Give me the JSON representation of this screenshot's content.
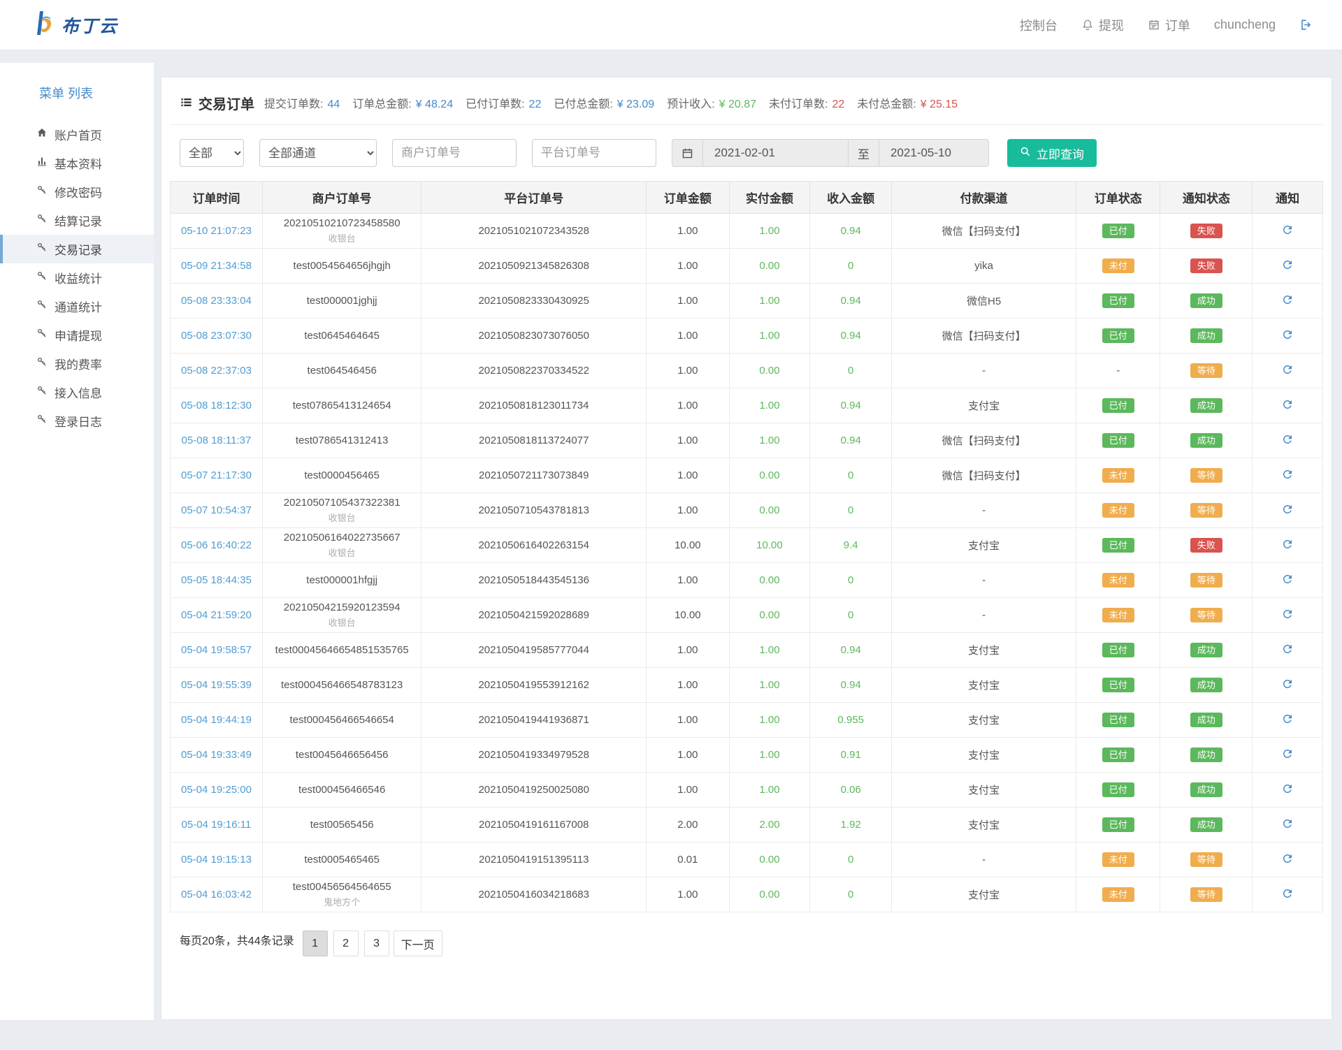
{
  "brand": {
    "name": "布丁云"
  },
  "topnav": {
    "console": "控制台",
    "withdraw": "提现",
    "orders": "订单",
    "username": "chuncheng"
  },
  "sidebar": {
    "title": "菜单 列表",
    "items": [
      {
        "label": "账户首页",
        "icon": "home-icon",
        "active": false
      },
      {
        "label": "基本资料",
        "icon": "chart-icon",
        "active": false
      },
      {
        "label": "修改密码",
        "icon": "key-icon",
        "active": false
      },
      {
        "label": "结算记录",
        "icon": "key-icon",
        "active": false
      },
      {
        "label": "交易记录",
        "icon": "key-icon",
        "active": true
      },
      {
        "label": "收益统计",
        "icon": "key-icon",
        "active": false
      },
      {
        "label": "通道统计",
        "icon": "key-icon",
        "active": false
      },
      {
        "label": "申请提现",
        "icon": "key-icon",
        "active": false
      },
      {
        "label": "我的费率",
        "icon": "key-icon",
        "active": false
      },
      {
        "label": "接入信息",
        "icon": "key-icon",
        "active": false
      },
      {
        "label": "登录日志",
        "icon": "key-icon",
        "active": false
      }
    ]
  },
  "page": {
    "title": "交易订单",
    "stats": [
      {
        "label": "提交订单数:",
        "value": "44",
        "color": "blue"
      },
      {
        "label": "订单总金额:",
        "value": "¥ 48.24",
        "color": "blue"
      },
      {
        "label": "已付订单数:",
        "value": "22",
        "color": "blue"
      },
      {
        "label": "已付总金额:",
        "value": "¥ 23.09",
        "color": "blue"
      },
      {
        "label": "预计收入:",
        "value": "¥ 20.87",
        "color": "green"
      },
      {
        "label": "未付订单数:",
        "value": "22",
        "color": "red"
      },
      {
        "label": "未付总金额:",
        "value": "¥ 25.15",
        "color": "red"
      }
    ]
  },
  "filters": {
    "status_selected": "全部",
    "channel_selected": "全部通道",
    "merchant_placeholder": "商户订单号",
    "platform_placeholder": "平台订单号",
    "date_from": "2021-02-01",
    "date_separator": "至",
    "date_to": "2021-05-10",
    "search_label": "立即查询"
  },
  "table": {
    "headers": [
      "订单时间",
      "商户订单号",
      "平台订单号",
      "订单金额",
      "实付金额",
      "收入金额",
      "付款渠道",
      "订单状态",
      "通知状态",
      "通知"
    ],
    "rows": [
      {
        "time": "05-10 21:07:23",
        "merchant": "20210510210723458580",
        "merchant_sub": "收银台",
        "platform": "2021051021072343528",
        "amount": "1.00",
        "paid": "1.00",
        "income": "0.94",
        "channel": "微信【扫码支付】",
        "status": "已付",
        "status_type": "paid",
        "notify": "失败",
        "notify_type": "fail"
      },
      {
        "time": "05-09 21:34:58",
        "merchant": "test0054564656jhgjh",
        "merchant_sub": "",
        "platform": "2021050921345826308",
        "amount": "1.00",
        "paid": "0.00",
        "income": "0",
        "channel": "yika",
        "status": "未付",
        "status_type": "unpaid",
        "notify": "失败",
        "notify_type": "fail"
      },
      {
        "time": "05-08 23:33:04",
        "merchant": "test000001jghjj",
        "merchant_sub": "",
        "platform": "2021050823330430925",
        "amount": "1.00",
        "paid": "1.00",
        "income": "0.94",
        "channel": "微信H5",
        "status": "已付",
        "status_type": "paid",
        "notify": "成功",
        "notify_type": "success"
      },
      {
        "time": "05-08 23:07:30",
        "merchant": "test0645464645",
        "merchant_sub": "",
        "platform": "2021050823073076050",
        "amount": "1.00",
        "paid": "1.00",
        "income": "0.94",
        "channel": "微信【扫码支付】",
        "status": "已付",
        "status_type": "paid",
        "notify": "成功",
        "notify_type": "success"
      },
      {
        "time": "05-08 22:37:03",
        "merchant": "test064546456",
        "merchant_sub": "",
        "platform": "2021050822370334522",
        "amount": "1.00",
        "paid": "0.00",
        "income": "0",
        "channel": "-",
        "status": "-",
        "status_type": "none",
        "notify": "等待",
        "notify_type": "wait"
      },
      {
        "time": "05-08 18:12:30",
        "merchant": "test07865413124654",
        "merchant_sub": "",
        "platform": "2021050818123011734",
        "amount": "1.00",
        "paid": "1.00",
        "income": "0.94",
        "channel": "支付宝",
        "status": "已付",
        "status_type": "paid",
        "notify": "成功",
        "notify_type": "success"
      },
      {
        "time": "05-08 18:11:37",
        "merchant": "test0786541312413",
        "merchant_sub": "",
        "platform": "2021050818113724077",
        "amount": "1.00",
        "paid": "1.00",
        "income": "0.94",
        "channel": "微信【扫码支付】",
        "status": "已付",
        "status_type": "paid",
        "notify": "成功",
        "notify_type": "success"
      },
      {
        "time": "05-07 21:17:30",
        "merchant": "test0000456465",
        "merchant_sub": "",
        "platform": "2021050721173073849",
        "amount": "1.00",
        "paid": "0.00",
        "income": "0",
        "channel": "微信【扫码支付】",
        "status": "未付",
        "status_type": "unpaid",
        "notify": "等待",
        "notify_type": "wait"
      },
      {
        "time": "05-07 10:54:37",
        "merchant": "20210507105437322381",
        "merchant_sub": "收银台",
        "platform": "2021050710543781813",
        "amount": "1.00",
        "paid": "0.00",
        "income": "0",
        "channel": "-",
        "status": "未付",
        "status_type": "unpaid",
        "notify": "等待",
        "notify_type": "wait"
      },
      {
        "time": "05-06 16:40:22",
        "merchant": "20210506164022735667",
        "merchant_sub": "收银台",
        "platform": "2021050616402263154",
        "amount": "10.00",
        "paid": "10.00",
        "income": "9.4",
        "channel": "支付宝",
        "status": "已付",
        "status_type": "paid",
        "notify": "失败",
        "notify_type": "fail"
      },
      {
        "time": "05-05 18:44:35",
        "merchant": "test000001hfgjj",
        "merchant_sub": "",
        "platform": "2021050518443545136",
        "amount": "1.00",
        "paid": "0.00",
        "income": "0",
        "channel": "-",
        "status": "未付",
        "status_type": "unpaid",
        "notify": "等待",
        "notify_type": "wait"
      },
      {
        "time": "05-04 21:59:20",
        "merchant": "20210504215920123594",
        "merchant_sub": "收银台",
        "platform": "2021050421592028689",
        "amount": "10.00",
        "paid": "0.00",
        "income": "0",
        "channel": "-",
        "status": "未付",
        "status_type": "unpaid",
        "notify": "等待",
        "notify_type": "wait"
      },
      {
        "time": "05-04 19:58:57",
        "merchant": "test00045646654851535765",
        "merchant_sub": "",
        "platform": "2021050419585777044",
        "amount": "1.00",
        "paid": "1.00",
        "income": "0.94",
        "channel": "支付宝",
        "status": "已付",
        "status_type": "paid",
        "notify": "成功",
        "notify_type": "success"
      },
      {
        "time": "05-04 19:55:39",
        "merchant": "test000456466548783123",
        "merchant_sub": "",
        "platform": "2021050419553912162",
        "amount": "1.00",
        "paid": "1.00",
        "income": "0.94",
        "channel": "支付宝",
        "status": "已付",
        "status_type": "paid",
        "notify": "成功",
        "notify_type": "success"
      },
      {
        "time": "05-04 19:44:19",
        "merchant": "test000456466546654",
        "merchant_sub": "",
        "platform": "2021050419441936871",
        "amount": "1.00",
        "paid": "1.00",
        "income": "0.955",
        "channel": "支付宝",
        "status": "已付",
        "status_type": "paid",
        "notify": "成功",
        "notify_type": "success"
      },
      {
        "time": "05-04 19:33:49",
        "merchant": "test0045646656456",
        "merchant_sub": "",
        "platform": "2021050419334979528",
        "amount": "1.00",
        "paid": "1.00",
        "income": "0.91",
        "channel": "支付宝",
        "status": "已付",
        "status_type": "paid",
        "notify": "成功",
        "notify_type": "success"
      },
      {
        "time": "05-04 19:25:00",
        "merchant": "test000456466546",
        "merchant_sub": "",
        "platform": "2021050419250025080",
        "amount": "1.00",
        "paid": "1.00",
        "income": "0.06",
        "channel": "支付宝",
        "status": "已付",
        "status_type": "paid",
        "notify": "成功",
        "notify_type": "success"
      },
      {
        "time": "05-04 19:16:11",
        "merchant": "test00565456",
        "merchant_sub": "",
        "platform": "2021050419161167008",
        "amount": "2.00",
        "paid": "2.00",
        "income": "1.92",
        "channel": "支付宝",
        "status": "已付",
        "status_type": "paid",
        "notify": "成功",
        "notify_type": "success"
      },
      {
        "time": "05-04 19:15:13",
        "merchant": "test0005465465",
        "merchant_sub": "",
        "platform": "2021050419151395113",
        "amount": "0.01",
        "paid": "0.00",
        "income": "0",
        "channel": "-",
        "status": "未付",
        "status_type": "unpaid",
        "notify": "等待",
        "notify_type": "wait"
      },
      {
        "time": "05-04 16:03:42",
        "merchant": "test00456564564655",
        "merchant_sub": "鬼地方个",
        "platform": "2021050416034218683",
        "amount": "1.00",
        "paid": "0.00",
        "income": "0",
        "channel": "支付宝",
        "status": "未付",
        "status_type": "unpaid",
        "notify": "等待",
        "notify_type": "wait"
      }
    ]
  },
  "pagination": {
    "summary": "每页20条，共44条记录",
    "pages": [
      "1",
      "2",
      "3"
    ],
    "active_page": "1",
    "next_label": "下一页"
  },
  "colors": {
    "accent_blue": "#428bca",
    "success_green": "#5cb85c",
    "warning_orange": "#f0ad4e",
    "danger_red": "#d9534f",
    "search_teal": "#18bc9c",
    "link_blue": "#4f9cd2"
  }
}
